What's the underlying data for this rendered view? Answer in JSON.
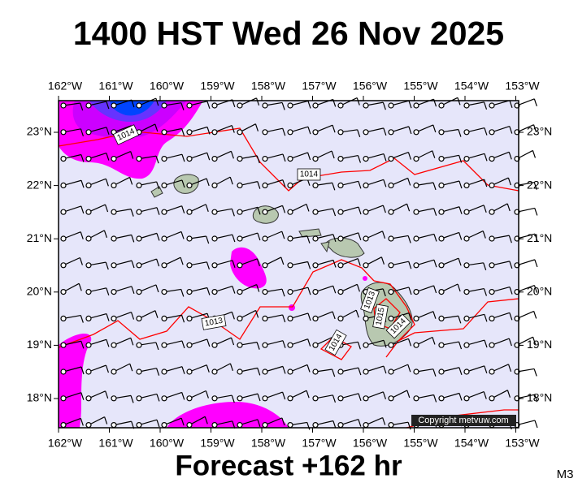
{
  "title": "1400 HST Wed 26 Nov 2025",
  "footer": "Forecast +162 hr",
  "model": "M3",
  "copyright": "Copyright metvuw.com",
  "map": {
    "lon_labels": [
      "162°W",
      "161°W",
      "160°W",
      "159°W",
      "158°W",
      "157°W",
      "156°W",
      "155°W",
      "154°W",
      "153°W"
    ],
    "lat_labels": [
      "23°N",
      "22°N",
      "21°N",
      "20°N",
      "19°N",
      "18°N"
    ],
    "isobar_labels": [
      "1014",
      "1014",
      "1013",
      "1013",
      "1015",
      "1014",
      "1014"
    ]
  }
}
